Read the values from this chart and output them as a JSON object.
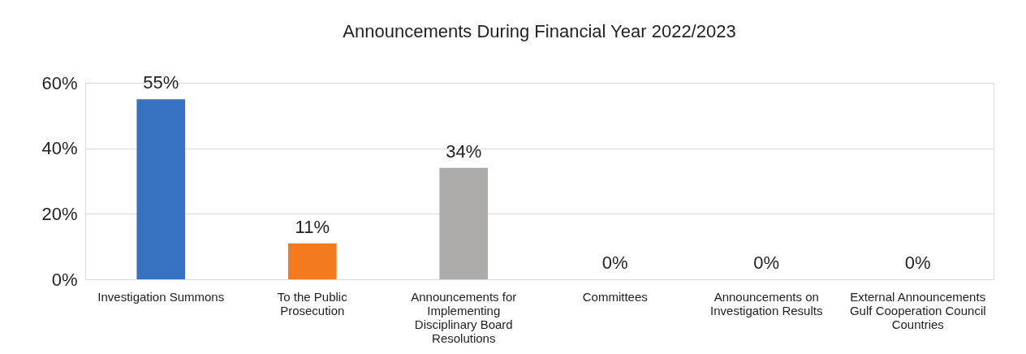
{
  "chart_data": {
    "type": "bar",
    "title": "Announcements During Financial Year 2022/2023",
    "categories": [
      "Investigation Summons",
      "To the Public Prosecution",
      "Announcements for Implementing Disciplinary Board Resolutions",
      "Committees",
      "Announcements on Investigation Results",
      "External Announcements Gulf Cooperation Council Countries"
    ],
    "values": [
      55,
      11,
      34,
      0,
      0,
      0
    ],
    "colors": [
      "#3672c0",
      "#f47a20",
      "#aeabab",
      "#ffc000",
      "#5b9bd5",
      "#70ad47"
    ],
    "value_labels": [
      "55%",
      "11%",
      "34%",
      "0%",
      "0%",
      "0%"
    ],
    "ylim": [
      0,
      60
    ],
    "yticks": [
      {
        "value": 0,
        "label": "0%"
      },
      {
        "value": 20,
        "label": "20%"
      },
      {
        "value": 40,
        "label": "40%"
      },
      {
        "value": 60,
        "label": "60%"
      }
    ],
    "grid": "y"
  }
}
